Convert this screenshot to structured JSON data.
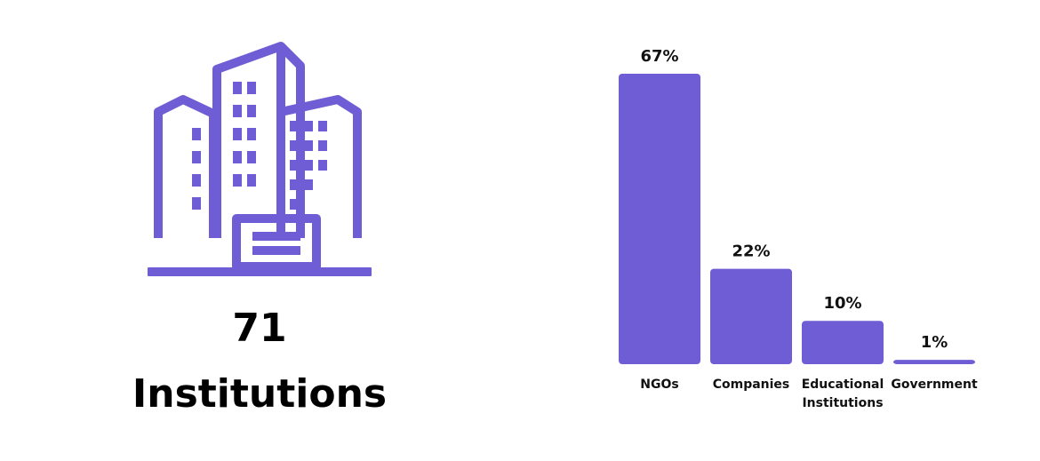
{
  "summary": {
    "count": "71",
    "label": "Institutions",
    "icon": "office-buildings-icon"
  },
  "colors": {
    "accent": "#6e5dd4"
  },
  "chart_data": {
    "type": "bar",
    "categories": [
      "NGOs",
      "Companies",
      "Educational Institutions",
      "Government"
    ],
    "category_lines": [
      [
        "NGOs"
      ],
      [
        "Companies"
      ],
      [
        "Educational",
        "Institutions"
      ],
      [
        "Government"
      ]
    ],
    "values": [
      67,
      22,
      10,
      1
    ],
    "value_labels": [
      "67%",
      "22%",
      "10%",
      "1%"
    ],
    "title": "",
    "xlabel": "",
    "ylabel": "",
    "ylim": [
      0,
      67
    ],
    "grid": false
  }
}
